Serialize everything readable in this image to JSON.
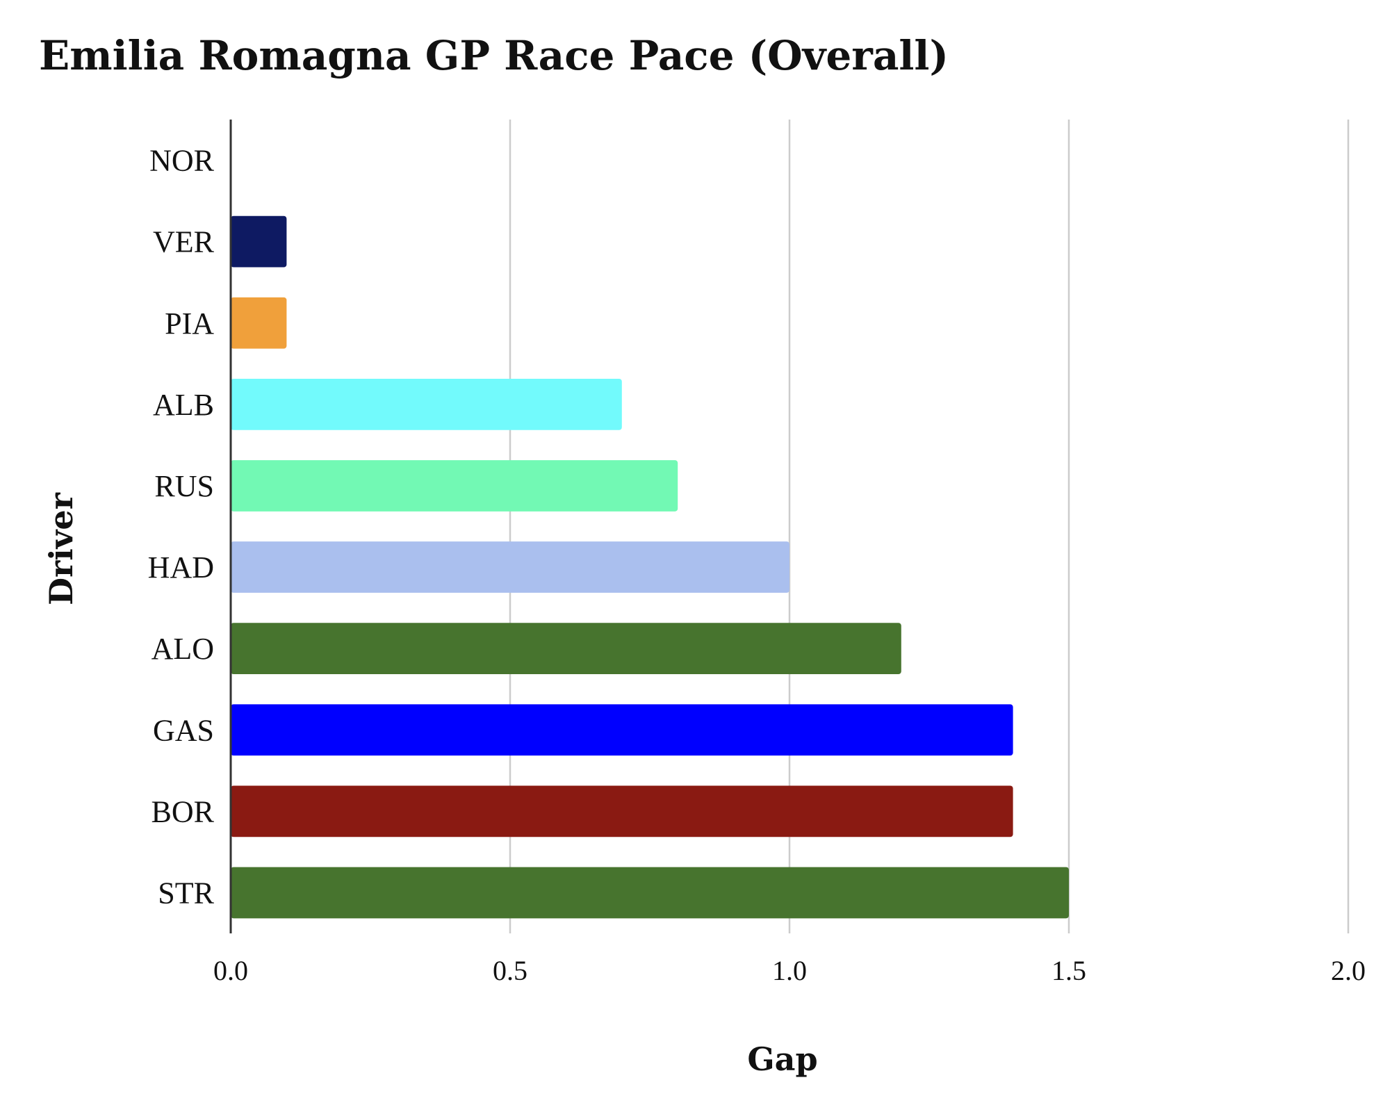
{
  "chart_data": {
    "type": "bar",
    "orientation": "horizontal",
    "title": "Emilia Romagna GP Race Pace (Overall)",
    "xlabel": "Gap",
    "ylabel": "Driver",
    "xlim": [
      0,
      2.0
    ],
    "xticks": [
      "0.0",
      "0.5",
      "1.0",
      "1.5",
      "2.0"
    ],
    "grid": true,
    "categories": [
      "NOR",
      "VER",
      "PIA",
      "ALB",
      "RUS",
      "HAD",
      "ALO",
      "GAS",
      "BOR",
      "STR"
    ],
    "values": [
      0.0,
      0.1,
      0.1,
      0.7,
      0.8,
      1.0,
      1.2,
      1.4,
      1.4,
      1.5
    ],
    "colors": [
      "#F58020",
      "#0E1A62",
      "#F0A03B",
      "#72FAFC",
      "#72F9B4",
      "#AABFEE",
      "#47742E",
      "#0000FF",
      "#8A1A12",
      "#47742E"
    ]
  }
}
